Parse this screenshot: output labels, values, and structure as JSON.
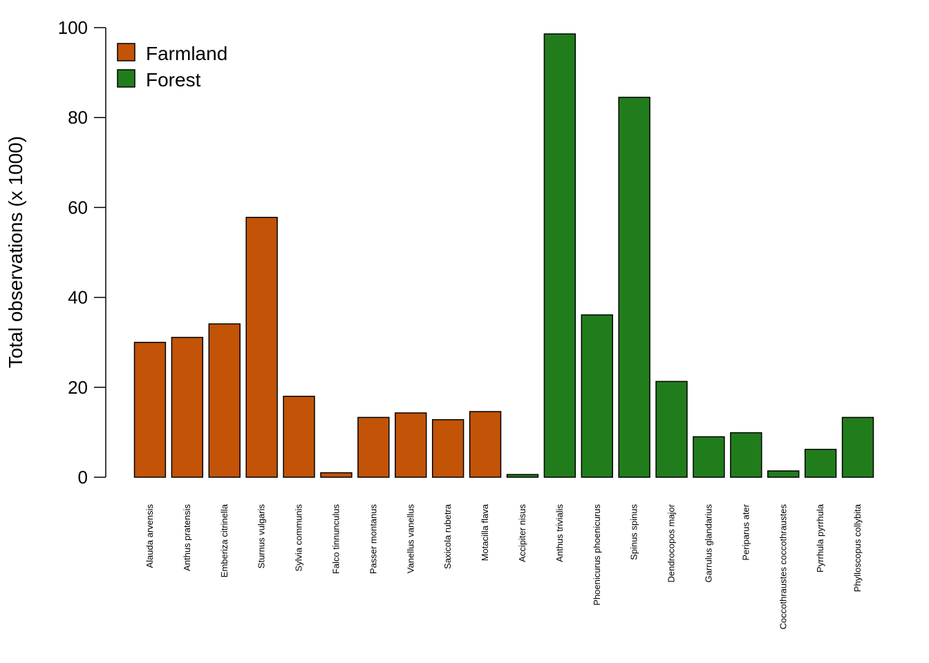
{
  "chart_data": {
    "type": "bar",
    "title": "",
    "xlabel": "",
    "ylabel": "Total observations (x 1000)",
    "ylim": [
      0,
      100
    ],
    "yticks": [
      0,
      20,
      40,
      60,
      80,
      100
    ],
    "grid": false,
    "legend_position": "top-left",
    "categories": [
      "Alauda arvensis",
      "Anthus pratensis",
      "Emberiza citrinella",
      "Sturnus vulgaris",
      "Sylvia communis",
      "Falco tinnunculus",
      "Passer montanus",
      "Vanellus vanellus",
      "Saxicola rubetra",
      "Motacilla flava",
      "Accipiter nisus",
      "Anthus trivialis",
      "Phoenicurus phoenicurus",
      "Spinus spinus",
      "Dendrocopos major",
      "Garrulus glandarius",
      "Periparus ater",
      "Coccothraustes coccothraustes",
      "Pyrrhula pyrrhula",
      "Phylloscopus collybita"
    ],
    "values": [
      30.0,
      31.1,
      34.1,
      57.8,
      18.0,
      1.0,
      13.3,
      14.3,
      12.8,
      14.6,
      0.6,
      98.6,
      36.1,
      84.5,
      21.3,
      9.0,
      9.9,
      1.4,
      6.2,
      13.3
    ],
    "groups": [
      "Farmland",
      "Farmland",
      "Farmland",
      "Farmland",
      "Farmland",
      "Farmland",
      "Farmland",
      "Farmland",
      "Farmland",
      "Farmland",
      "Forest",
      "Forest",
      "Forest",
      "Forest",
      "Forest",
      "Forest",
      "Forest",
      "Forest",
      "Forest",
      "Forest"
    ],
    "legend": [
      {
        "name": "Farmland",
        "color": "#c25307"
      },
      {
        "name": "Forest",
        "color": "#217d1c"
      }
    ]
  }
}
